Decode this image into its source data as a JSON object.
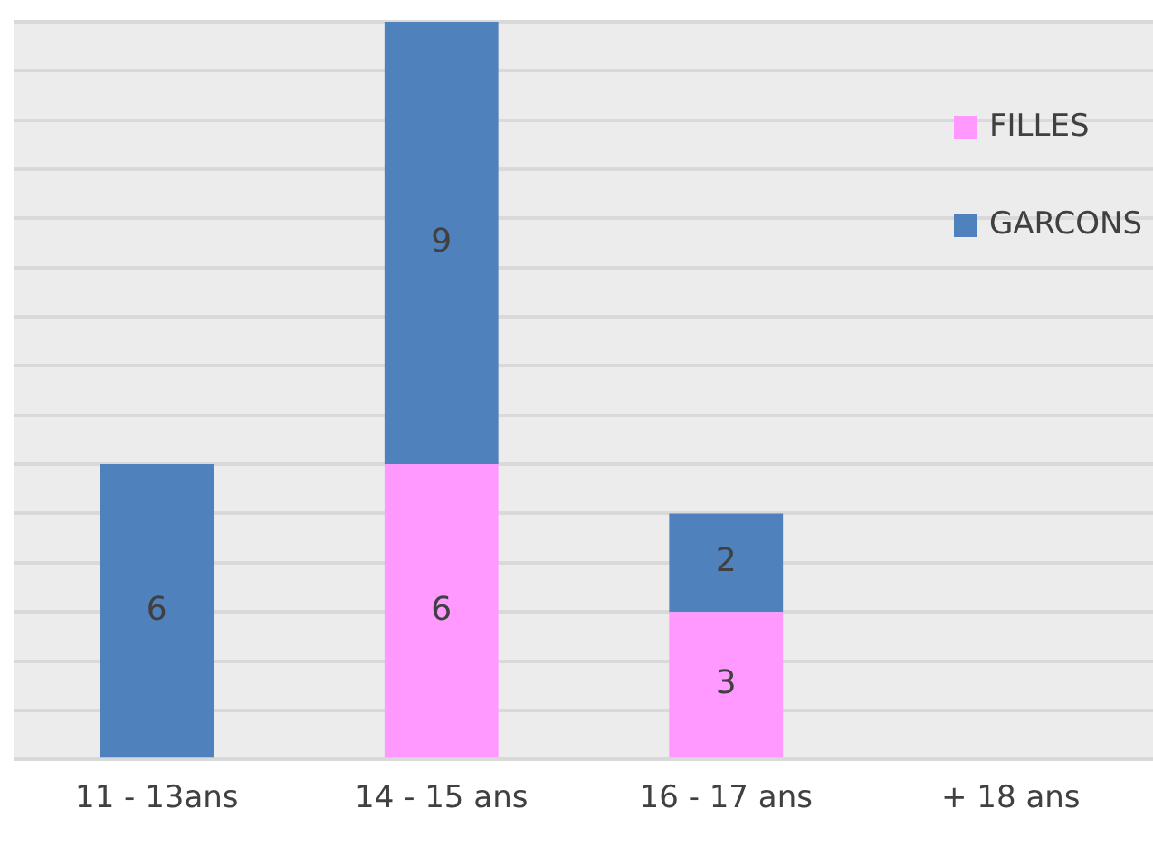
{
  "chart_data": {
    "type": "bar",
    "stacked": true,
    "categories": [
      "11 - 13ans",
      "14 - 15 ans",
      "16 - 17 ans",
      "+ 18 ans"
    ],
    "series": [
      {
        "name": "FILLES",
        "color": "#ff99ff",
        "values": [
          0,
          6,
          3,
          0
        ],
        "value_labels": [
          null,
          "6",
          "3",
          null
        ]
      },
      {
        "name": "GARCONS",
        "color": "#4f81bd",
        "values": [
          6,
          9,
          2,
          0
        ],
        "value_labels": [
          "6",
          "9",
          "2",
          null
        ]
      }
    ],
    "ylim": [
      0,
      15
    ],
    "yticks": [
      {
        "value": 0,
        "label": null
      },
      {
        "value": 1,
        "label": null
      },
      {
        "value": 2,
        "label": null
      },
      {
        "value": 3,
        "label": null
      },
      {
        "value": 4,
        "label": null
      },
      {
        "value": 5,
        "label": null
      },
      {
        "value": 6,
        "label": null
      },
      {
        "value": 7,
        "label": null
      },
      {
        "value": 8,
        "label": null
      },
      {
        "value": 9,
        "label": null
      },
      {
        "value": 10,
        "label": null
      },
      {
        "value": 11,
        "label": null
      },
      {
        "value": 12,
        "label": null
      },
      {
        "value": 13,
        "label": null
      },
      {
        "value": 14,
        "label": null
      },
      {
        "value": 15,
        "label": null
      }
    ],
    "grid": "y",
    "legend": "top right",
    "tick_labels": "x"
  }
}
